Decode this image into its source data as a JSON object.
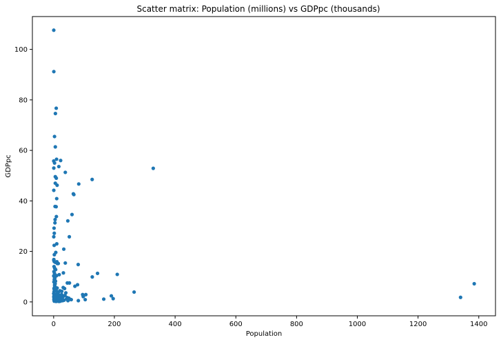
{
  "chart_data": {
    "type": "scatter",
    "title": "Scatter matrix: Population (millions) vs GDPpc (thousands)",
    "xlabel": "Population",
    "ylabel": "GDPpc",
    "xlim": [
      -70,
      1455
    ],
    "ylim": [
      -5.5,
      113
    ],
    "xticks": [
      0,
      200,
      400,
      600,
      800,
      1000,
      1200,
      1400
    ],
    "yticks": [
      0,
      20,
      40,
      60,
      80,
      100
    ],
    "grid": false,
    "color": "#1f77b4",
    "points": [
      [
        0.4,
        107.6
      ],
      [
        0.6,
        91.2
      ],
      [
        8.5,
        76.7
      ],
      [
        5.8,
        74.6
      ],
      [
        2.9,
        65.5
      ],
      [
        5.5,
        61.4
      ],
      [
        9.6,
        56.5
      ],
      [
        23,
        56.0
      ],
      [
        0.3,
        55.8
      ],
      [
        3.0,
        55.0
      ],
      [
        17.1,
        53.6
      ],
      [
        0.5,
        53.0
      ],
      [
        38.4,
        51.3
      ],
      [
        5.4,
        49.6
      ],
      [
        8.7,
        49.0
      ],
      [
        5.4,
        47.0
      ],
      [
        11.4,
        46.2
      ],
      [
        82.7,
        46.7
      ],
      [
        64.9,
        42.8
      ],
      [
        66.5,
        42.5
      ],
      [
        126.8,
        48.5
      ],
      [
        328,
        52.9
      ],
      [
        0.5,
        44.2
      ],
      [
        10.1,
        40.9
      ],
      [
        4.6,
        37.8
      ],
      [
        8.2,
        37.7
      ],
      [
        9.0,
        33.8
      ],
      [
        4.8,
        32.6
      ],
      [
        46.7,
        32.1
      ],
      [
        4.3,
        31.3
      ],
      [
        60.5,
        34.6
      ],
      [
        1.3,
        29.2
      ],
      [
        2.1,
        27.2
      ],
      [
        0.4,
        25.8
      ],
      [
        51.6,
        25.8
      ],
      [
        1.7,
        22.4
      ],
      [
        10.3,
        23.0
      ],
      [
        33.4,
        20.9
      ],
      [
        2.3,
        18.7
      ],
      [
        7.0,
        19.6
      ],
      [
        0.5,
        16.5
      ],
      [
        1.9,
        16.0
      ],
      [
        5.4,
        15.7
      ],
      [
        10.7,
        15.9
      ],
      [
        15.2,
        15.2
      ],
      [
        38.4,
        15.4
      ],
      [
        80.8,
        14.8
      ],
      [
        1.3,
        14.0
      ],
      [
        3.5,
        13.3
      ],
      [
        2.8,
        11.3
      ],
      [
        144.5,
        11.3
      ],
      [
        209.5,
        10.9
      ],
      [
        127.2,
        9.9
      ],
      [
        32.1,
        11.5
      ],
      [
        18.3,
        10.8
      ],
      [
        0.3,
        10.3
      ],
      [
        4.1,
        9.6
      ],
      [
        3.4,
        9.0
      ],
      [
        2.1,
        8.8
      ],
      [
        0.9,
        7.9
      ],
      [
        45.0,
        7.5
      ],
      [
        52.0,
        7.5
      ],
      [
        78.7,
        6.8
      ],
      [
        1385,
        7.2
      ],
      [
        1340,
        1.8
      ],
      [
        265,
        3.9
      ],
      [
        196,
        1.3
      ],
      [
        165,
        1.1
      ],
      [
        190,
        2.4
      ],
      [
        106,
        2.9
      ],
      [
        97.5,
        2.1
      ],
      [
        104,
        0.9
      ],
      [
        81.3,
        0.5
      ],
      [
        95.5,
        2.9
      ],
      [
        70,
        6.2
      ],
      [
        31.5,
        5.7
      ],
      [
        36,
        5.3
      ],
      [
        26.8,
        4.2
      ],
      [
        44.2,
        1.7
      ],
      [
        49.7,
        1.5
      ],
      [
        55.6,
        1.0
      ],
      [
        18.5,
        2.6
      ],
      [
        23.3,
        1.1
      ],
      [
        15.5,
        0.9
      ],
      [
        25,
        0.8
      ],
      [
        31.8,
        2.2
      ],
      [
        7,
        3.0
      ],
      [
        7,
        1.0
      ],
      [
        2.4,
        1.3
      ],
      [
        3.4,
        2.5
      ],
      [
        8.3,
        4.5
      ],
      [
        11.5,
        5.5
      ],
      [
        4.6,
        5.9
      ],
      [
        2.2,
        5.6
      ],
      [
        1.2,
        5.2
      ],
      [
        3.8,
        6.2
      ],
      [
        3.0,
        6.7
      ],
      [
        5.0,
        7.2
      ],
      [
        6.1,
        8.2
      ],
      [
        1.5,
        4.1
      ],
      [
        12.6,
        3.4
      ],
      [
        14.1,
        2.4
      ],
      [
        17.5,
        1.4
      ],
      [
        19.2,
        0.4
      ],
      [
        21.4,
        1.9
      ],
      [
        26.2,
        2.9
      ],
      [
        28.4,
        1.6
      ],
      [
        34.5,
        0.7
      ],
      [
        37.3,
        2.6
      ],
      [
        40.1,
        3.6
      ],
      [
        42.5,
        1.2
      ],
      [
        10.2,
        0.6
      ],
      [
        9.1,
        2.0
      ],
      [
        4.0,
        0.4
      ],
      [
        1.8,
        0.7
      ],
      [
        0.9,
        1.7
      ],
      [
        0.2,
        3.3
      ],
      [
        13.4,
        1.1
      ],
      [
        16.4,
        3.9
      ],
      [
        6.9,
        4.8
      ],
      [
        2.9,
        9.5
      ],
      [
        1.0,
        12.0
      ],
      [
        0.6,
        2.2
      ],
      [
        20.5,
        4.4
      ],
      [
        11.0,
        2.8
      ],
      [
        47.1,
        0.5
      ],
      [
        58.0,
        0.9
      ],
      [
        29.7,
        0.5
      ],
      [
        22.2,
        0.3
      ],
      [
        17.9,
        0.2
      ],
      [
        14.0,
        0.3
      ],
      [
        8.0,
        0.2
      ],
      [
        5.0,
        1.8
      ],
      [
        2.0,
        0.3
      ],
      [
        0.8,
        0.9
      ],
      [
        12.0,
        15.2
      ],
      [
        9.5,
        10.4
      ],
      [
        3.2,
        7.6
      ],
      [
        6.6,
        12.8
      ],
      [
        0.7,
        16.8
      ]
    ]
  }
}
